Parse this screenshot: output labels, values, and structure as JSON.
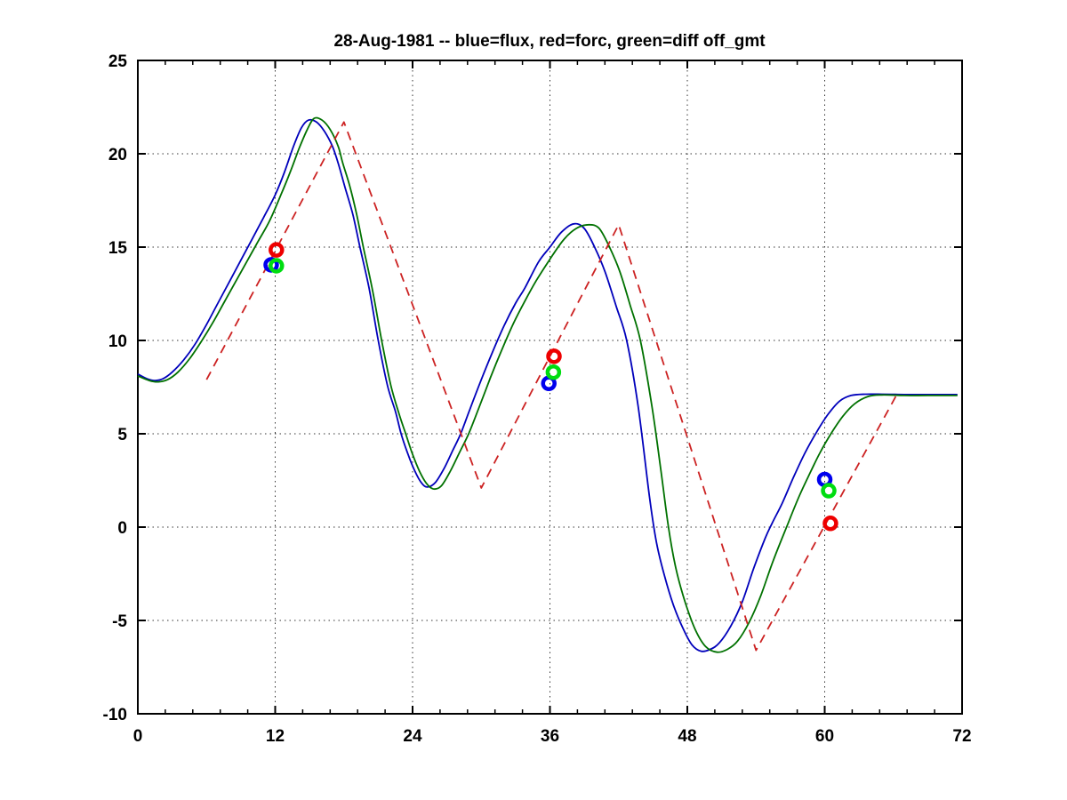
{
  "chart_data": {
    "type": "line",
    "title": "28-Aug-1981 -- blue=flux, red=forc, green=diff off_gmt",
    "xlabel": "",
    "ylabel": "",
    "xlim": [
      0,
      72
    ],
    "ylim": [
      -10,
      25
    ],
    "xticks": [
      0,
      12,
      24,
      36,
      48,
      60,
      72
    ],
    "yticks": [
      -10,
      -5,
      0,
      5,
      10,
      15,
      20,
      25
    ],
    "x_minor_step": 2.4,
    "grid": "dotted",
    "legend_position": "in-title",
    "colors": {
      "flux_line": "#0000bb",
      "diff_line": "#007100",
      "forc_line": "#cc2222",
      "flux_marker": "#0000ee",
      "diff_marker": "#00dd11",
      "forc_marker": "#ee0000",
      "grid": "#333333",
      "axis": "#000000"
    },
    "series": [
      {
        "name": "flux",
        "color_key": "flux_line",
        "style": "solid",
        "smooth": true,
        "points": [
          [
            0,
            8.2
          ],
          [
            0.8,
            7.95
          ],
          [
            1.5,
            7.85
          ],
          [
            2.2,
            7.95
          ],
          [
            3,
            8.3
          ],
          [
            4,
            8.95
          ],
          [
            5,
            9.8
          ],
          [
            6,
            10.85
          ],
          [
            7,
            12.0
          ],
          [
            8,
            13.15
          ],
          [
            9,
            14.3
          ],
          [
            10,
            15.45
          ],
          [
            11,
            16.6
          ],
          [
            12,
            17.8
          ],
          [
            12.8,
            19.0
          ],
          [
            13.6,
            20.4
          ],
          [
            14.3,
            21.4
          ],
          [
            14.9,
            21.8
          ],
          [
            15.6,
            21.7
          ],
          [
            16.3,
            21.2
          ],
          [
            17,
            20.4
          ],
          [
            17.5,
            19.5
          ],
          [
            18.1,
            18.2
          ],
          [
            18.8,
            16.7
          ],
          [
            19.4,
            15.0
          ],
          [
            20.2,
            12.8
          ],
          [
            21,
            10.0
          ],
          [
            21.8,
            7.6
          ],
          [
            22.5,
            6.2
          ],
          [
            23,
            5.0
          ],
          [
            23.6,
            3.9
          ],
          [
            24.2,
            3.0
          ],
          [
            24.8,
            2.35
          ],
          [
            25.3,
            2.15
          ],
          [
            26,
            2.4
          ],
          [
            26.8,
            3.2
          ],
          [
            27.5,
            4.1
          ],
          [
            28.2,
            5.0
          ],
          [
            29,
            6.3
          ],
          [
            30,
            7.9
          ],
          [
            31,
            9.4
          ],
          [
            32,
            10.8
          ],
          [
            33,
            12.0
          ],
          [
            33.8,
            12.8
          ],
          [
            35,
            14.2
          ],
          [
            36,
            15.0
          ],
          [
            37,
            15.8
          ],
          [
            38.1,
            16.25
          ],
          [
            39,
            16.0
          ],
          [
            39.9,
            15.0
          ],
          [
            40.8,
            13.7
          ],
          [
            41.8,
            11.8
          ],
          [
            42.7,
            10.0
          ],
          [
            43.7,
            6.5
          ],
          [
            44.7,
            1.6
          ],
          [
            45.3,
            -0.8
          ],
          [
            46,
            -2.6
          ],
          [
            46.8,
            -4.2
          ],
          [
            47.6,
            -5.4
          ],
          [
            48.4,
            -6.3
          ],
          [
            49.2,
            -6.65
          ],
          [
            50,
            -6.55
          ],
          [
            50.8,
            -6.2
          ],
          [
            51.8,
            -5.3
          ],
          [
            52.8,
            -4.0
          ],
          [
            53.8,
            -2.2
          ],
          [
            54.8,
            -0.6
          ],
          [
            55.4,
            0.2
          ],
          [
            56.3,
            1.3
          ],
          [
            57.3,
            2.7
          ],
          [
            58.3,
            4.0
          ],
          [
            59.3,
            5.1
          ],
          [
            60.3,
            6.05
          ],
          [
            61.3,
            6.75
          ],
          [
            62.3,
            7.05
          ],
          [
            63.5,
            7.12
          ],
          [
            65,
            7.12
          ],
          [
            67,
            7.1
          ],
          [
            69,
            7.1
          ],
          [
            71.6,
            7.1
          ]
        ]
      },
      {
        "name": "diff",
        "color_key": "diff_line",
        "style": "solid",
        "smooth": true,
        "points": [
          [
            0,
            8.1
          ],
          [
            1,
            7.85
          ],
          [
            1.8,
            7.78
          ],
          [
            2.6,
            7.9
          ],
          [
            3.5,
            8.3
          ],
          [
            4.5,
            9.0
          ],
          [
            5.5,
            9.9
          ],
          [
            6.5,
            10.9
          ],
          [
            7.5,
            12.0
          ],
          [
            8.5,
            13.1
          ],
          [
            9.5,
            14.2
          ],
          [
            10.5,
            15.3
          ],
          [
            11.5,
            16.4
          ],
          [
            12.5,
            17.8
          ],
          [
            13.3,
            19.0
          ],
          [
            14.1,
            20.3
          ],
          [
            14.8,
            21.3
          ],
          [
            15.4,
            21.9
          ],
          [
            16.1,
            21.8
          ],
          [
            16.8,
            21.3
          ],
          [
            17.5,
            20.4
          ],
          [
            17.9,
            19.5
          ],
          [
            18.5,
            18.3
          ],
          [
            19.1,
            16.8
          ],
          [
            19.7,
            15.0
          ],
          [
            20.5,
            12.7
          ],
          [
            21.3,
            10.0
          ],
          [
            22.1,
            7.6
          ],
          [
            22.8,
            6.1
          ],
          [
            23.4,
            5.0
          ],
          [
            24,
            3.9
          ],
          [
            24.6,
            3.0
          ],
          [
            25.2,
            2.35
          ],
          [
            25.8,
            2.05
          ],
          [
            26.5,
            2.2
          ],
          [
            27.3,
            3.0
          ],
          [
            28.1,
            4.0
          ],
          [
            28.9,
            5.0
          ],
          [
            29.8,
            6.4
          ],
          [
            30.8,
            8.0
          ],
          [
            31.8,
            9.5
          ],
          [
            32.8,
            10.9
          ],
          [
            33.8,
            12.1
          ],
          [
            34.8,
            13.2
          ],
          [
            36,
            14.35
          ],
          [
            37.2,
            15.4
          ],
          [
            38.3,
            16.0
          ],
          [
            39.4,
            16.2
          ],
          [
            40.3,
            16.0
          ],
          [
            41.2,
            15.0
          ],
          [
            42.1,
            13.7
          ],
          [
            43,
            11.9
          ],
          [
            43.9,
            10.0
          ],
          [
            44.9,
            6.5
          ],
          [
            45.7,
            3.0
          ],
          [
            46.35,
            0
          ],
          [
            47,
            -2.2
          ],
          [
            47.8,
            -4.0
          ],
          [
            48.7,
            -5.5
          ],
          [
            49.6,
            -6.4
          ],
          [
            50.6,
            -6.7
          ],
          [
            51.5,
            -6.55
          ],
          [
            52.4,
            -6.1
          ],
          [
            53.4,
            -5.1
          ],
          [
            54.4,
            -3.7
          ],
          [
            55.5,
            -1.8
          ],
          [
            56.8,
            0.2
          ],
          [
            57.8,
            1.7
          ],
          [
            58.8,
            3.0
          ],
          [
            59.6,
            4.0
          ],
          [
            60.6,
            5.05
          ],
          [
            61.6,
            5.95
          ],
          [
            62.6,
            6.6
          ],
          [
            63.8,
            7.0
          ],
          [
            65,
            7.08
          ],
          [
            67,
            7.05
          ],
          [
            69,
            7.05
          ],
          [
            71.6,
            7.05
          ]
        ]
      },
      {
        "name": "forc",
        "color_key": "forc_line",
        "style": "dashed",
        "smooth": false,
        "points": [
          [
            6,
            7.9
          ],
          [
            18,
            21.7
          ],
          [
            30,
            2.1
          ],
          [
            42,
            16.2
          ],
          [
            54,
            -6.6
          ],
          [
            66.3,
            7.1
          ]
        ]
      }
    ],
    "markers": [
      {
        "name": "flux-markers",
        "color_key": "flux_marker",
        "points": [
          [
            11.65,
            14.05
          ],
          [
            35.9,
            7.7
          ],
          [
            60.0,
            2.55
          ]
        ]
      },
      {
        "name": "diff-markers",
        "color_key": "diff_marker",
        "points": [
          [
            12.1,
            14.0
          ],
          [
            36.3,
            8.3
          ],
          [
            60.35,
            1.95
          ]
        ]
      },
      {
        "name": "forc-markers",
        "color_key": "forc_marker",
        "points": [
          [
            12.1,
            14.85
          ],
          [
            36.35,
            9.15
          ],
          [
            60.5,
            0.2
          ]
        ]
      }
    ]
  }
}
